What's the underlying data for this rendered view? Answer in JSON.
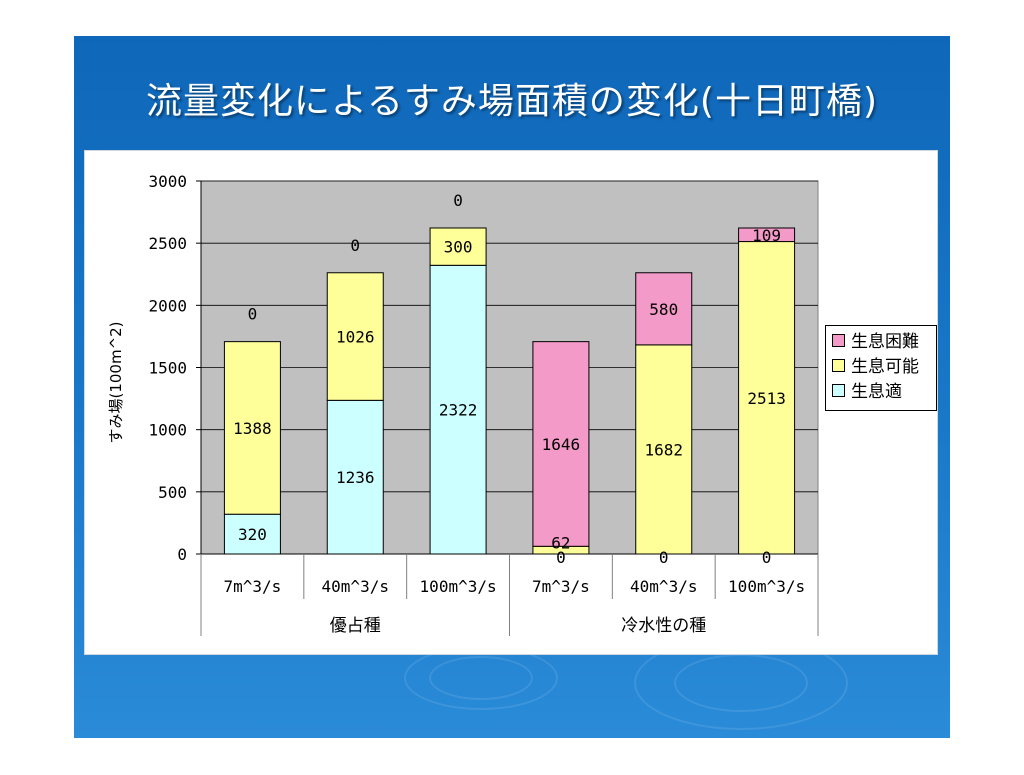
{
  "slide": {
    "title": "流量変化によるすみ場面積の変化(十日町橋)"
  },
  "colors": {
    "background_top": "#0f67b9",
    "background_bottom": "#2a8bd8",
    "plot_area": "#c0c0c0",
    "habitat_difficult": "#f49ac8",
    "habitat_possible": "#ffff99",
    "habitat_suitable": "#ccffff"
  },
  "chart_data": {
    "type": "stacked-bar",
    "title": "",
    "ylabel": "すみ場(100m^2)",
    "xlabel": "",
    "ylim": [
      0,
      3000
    ],
    "yticks": [
      0,
      500,
      1000,
      1500,
      2000,
      2500,
      3000
    ],
    "grid": true,
    "legend_position": "right",
    "categories": [
      "7m^3/s",
      "40m^3/s",
      "100m^3/s",
      "7m^3/s",
      "40m^3/s",
      "100m^3/s"
    ],
    "groups": [
      {
        "label": "優占種",
        "categories": [
          "7m^3/s",
          "40m^3/s",
          "100m^3/s"
        ]
      },
      {
        "label": "冷水性の種",
        "categories": [
          "7m^3/s",
          "40m^3/s",
          "100m^3/s"
        ]
      }
    ],
    "series": [
      {
        "name": "生息適",
        "color": "#ccffff",
        "values": [
          320,
          1236,
          2322,
          0,
          0,
          0
        ],
        "labels": [
          "320",
          "1236",
          "2322",
          "0",
          "0",
          "0"
        ]
      },
      {
        "name": "生息可能",
        "color": "#ffff99",
        "values": [
          1388,
          1026,
          300,
          62,
          1682,
          2513
        ],
        "labels": [
          "1388",
          "1026",
          "300",
          "62",
          "1682",
          "2513"
        ]
      },
      {
        "name": "生息困難",
        "color": "#f49ac8",
        "values": [
          0,
          0,
          0,
          1646,
          580,
          109
        ],
        "labels": [
          "0",
          "0",
          "0",
          "1646",
          "580",
          "109"
        ]
      }
    ],
    "legend_order": [
      "生息困難",
      "生息可能",
      "生息適"
    ]
  }
}
